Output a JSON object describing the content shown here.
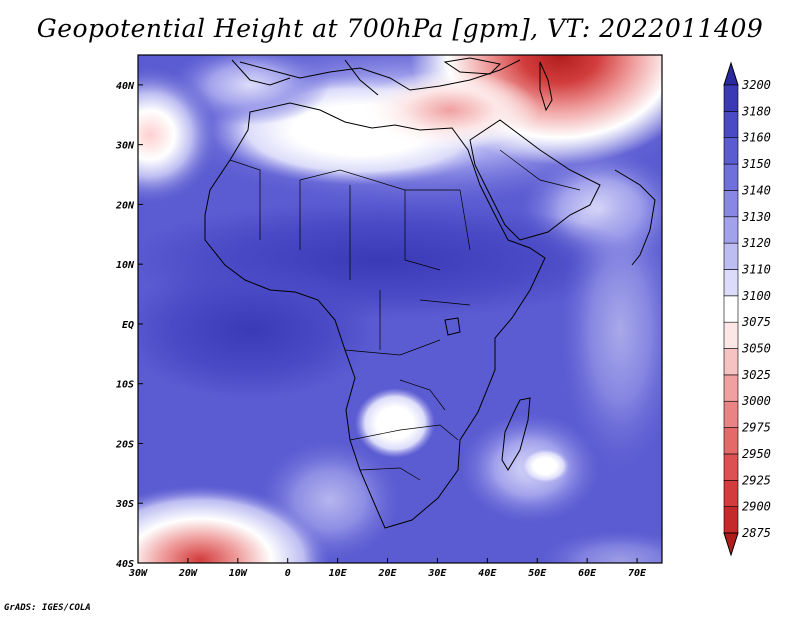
{
  "title": "Geopotential Height at 700hPa [gpm], VT: 2022011409",
  "credit": "GrADS: IGES/COLA",
  "map": {
    "lon_range": [
      -30,
      75
    ],
    "lat_range": [
      -40,
      45
    ],
    "lon_ticks": [
      "30W",
      "20W",
      "10W",
      "0",
      "10E",
      "20E",
      "30E",
      "40E",
      "50E",
      "60E",
      "70E"
    ],
    "lat_ticks": [
      "40S",
      "30S",
      "20S",
      "10S",
      "EQ",
      "10N",
      "20N",
      "30N",
      "40N"
    ]
  },
  "colorbar": {
    "levels": [
      "2875",
      "2900",
      "2925",
      "2950",
      "2975",
      "3000",
      "3025",
      "3050",
      "3075",
      "3100",
      "3110",
      "3120",
      "3130",
      "3140",
      "3150",
      "3160",
      "3180",
      "3200"
    ],
    "colors": [
      "#b01c1c",
      "#c42a2a",
      "#d23c3c",
      "#dc5252",
      "#e46a6a",
      "#ea8484",
      "#f0a0a0",
      "#f6c2c2",
      "#fde6e6",
      "#ffffff",
      "#dcdcfa",
      "#bdbdf2",
      "#a2a2ec",
      "#8888e4",
      "#7070dc",
      "#5c5cd2",
      "#4a4ac6",
      "#3a3ab6",
      "#2a2aa0"
    ]
  }
}
